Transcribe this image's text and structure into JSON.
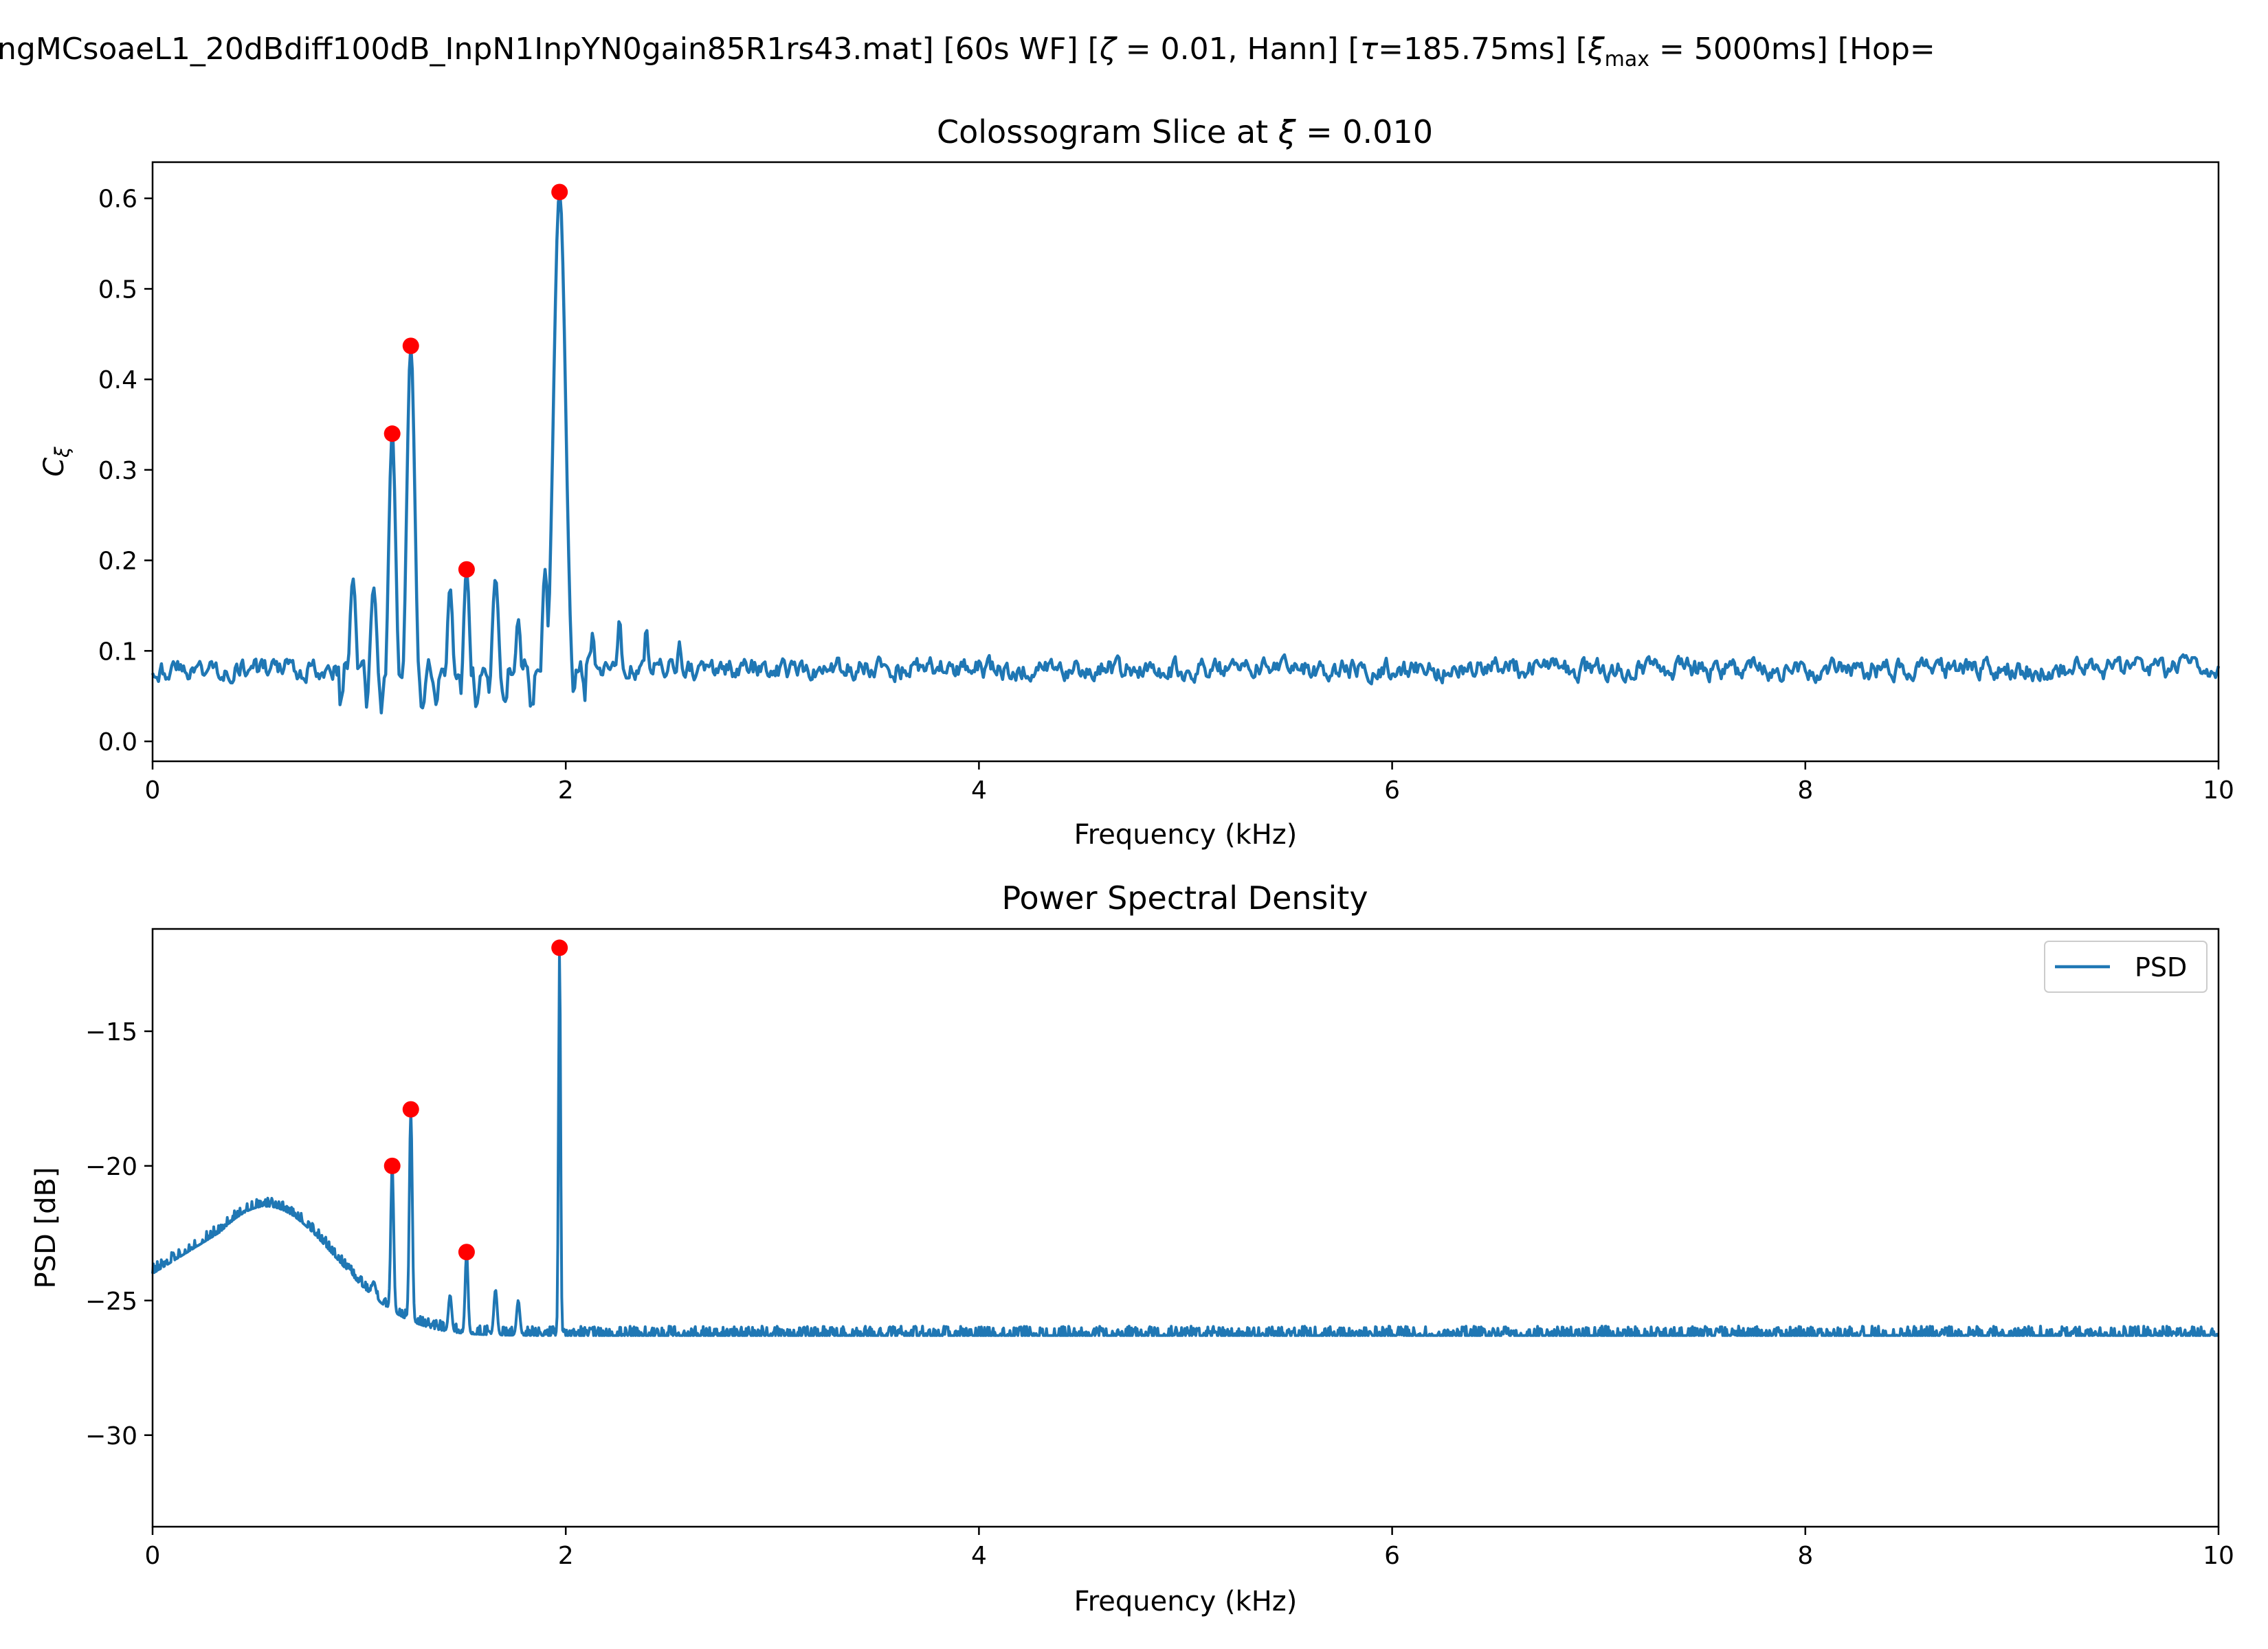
{
  "figure": {
    "suptitle_main": "ngMCsoaeL1_20dBdiff100dB_InpN1InpYN0gain85R1rs43.mat]   [60s WF]   [",
    "zeta_sym": "ζ",
    "zeta_val": " = 0.01, Hann]   [",
    "tau_sym": "τ",
    "tau_val": "=185.75ms]   [",
    "xi_sym": "ξ",
    "xi_sub": "max",
    "xi_val": " = 5000ms]   [Hop="
  },
  "chart_data": [
    {
      "type": "line",
      "title_prefix": "Colossogram Slice at ",
      "title_sym": "ξ",
      "title_value": " = 0.010",
      "xlabel": "Frequency (kHz)",
      "ylabel_main": "C",
      "ylabel_sub": "ξ",
      "xlim": [
        0,
        10
      ],
      "ylim": [
        -0.022,
        0.64
      ],
      "xticks": [
        0,
        2,
        4,
        6,
        8,
        10
      ],
      "xtick_labels": [
        "0",
        "2",
        "4",
        "6",
        "8",
        "10"
      ],
      "yticks": [
        0.0,
        0.1,
        0.2,
        0.3,
        0.4,
        0.5,
        0.6
      ],
      "ytick_labels": [
        "0.0",
        "0.1",
        "0.2",
        "0.3",
        "0.4",
        "0.5",
        "0.6"
      ],
      "grid": false,
      "line_color": "#1f77b4",
      "peak_color": "#ff0000",
      "baseline": 0.08,
      "noise_amplitude": 0.013,
      "features": [
        {
          "f": 0.97,
          "v": 0.18,
          "w": 0.018
        },
        {
          "f": 1.07,
          "v": 0.17,
          "w": 0.018
        },
        {
          "f": 1.16,
          "v": 0.34,
          "w": 0.018
        },
        {
          "f": 1.25,
          "v": 0.437,
          "w": 0.02
        },
        {
          "f": 1.44,
          "v": 0.17,
          "w": 0.016
        },
        {
          "f": 1.52,
          "v": 0.19,
          "w": 0.016
        },
        {
          "f": 1.66,
          "v": 0.18,
          "w": 0.018
        },
        {
          "f": 1.77,
          "v": 0.135,
          "w": 0.016
        },
        {
          "f": 1.9,
          "v": 0.19,
          "w": 0.016
        },
        {
          "f": 1.97,
          "v": 0.607,
          "w": 0.03
        },
        {
          "f": 2.13,
          "v": 0.12,
          "w": 0.014
        },
        {
          "f": 2.26,
          "v": 0.135,
          "w": 0.014
        },
        {
          "f": 2.39,
          "v": 0.125,
          "w": 0.014
        },
        {
          "f": 2.55,
          "v": 0.11,
          "w": 0.014
        }
      ],
      "peaks": [
        {
          "f": 1.16,
          "v": 0.34
        },
        {
          "f": 1.25,
          "v": 0.437
        },
        {
          "f": 1.52,
          "v": 0.19
        },
        {
          "f": 1.97,
          "v": 0.607
        }
      ]
    },
    {
      "type": "line",
      "title": "Power Spectral Density",
      "xlabel": "Frequency (kHz)",
      "ylabel": "PSD [dB]",
      "xlim": [
        0,
        10
      ],
      "ylim": [
        -33.4,
        -11.2
      ],
      "xticks": [
        0,
        2,
        4,
        6,
        8,
        10
      ],
      "xtick_labels": [
        "0",
        "2",
        "4",
        "6",
        "8",
        "10"
      ],
      "yticks": [
        -30,
        -25,
        -20,
        -15
      ],
      "ytick_labels": [
        "−30",
        "−25",
        "−20",
        "−15"
      ],
      "grid": false,
      "legend": {
        "position": "top-right",
        "label": "PSD"
      },
      "line_color": "#1f77b4",
      "peak_color": "#ff0000",
      "series": [
        {
          "name": "PSD"
        }
      ],
      "floor_db": -26.3,
      "noise_amplitude": 0.25,
      "hump": {
        "f": 0.55,
        "v": -21.5,
        "w": 0.6
      },
      "features": [
        {
          "f": 0.95,
          "v": -23.8,
          "w": 0.01
        },
        {
          "f": 1.07,
          "v": -24.3,
          "w": 0.01
        },
        {
          "f": 1.16,
          "v": -20.0,
          "w": 0.007
        },
        {
          "f": 1.25,
          "v": -17.9,
          "w": 0.007
        },
        {
          "f": 1.44,
          "v": -24.8,
          "w": 0.008
        },
        {
          "f": 1.52,
          "v": -23.2,
          "w": 0.007
        },
        {
          "f": 1.66,
          "v": -24.6,
          "w": 0.008
        },
        {
          "f": 1.77,
          "v": -25.0,
          "w": 0.008
        },
        {
          "f": 1.97,
          "v": -11.9,
          "w": 0.005
        }
      ],
      "peaks": [
        {
          "f": 1.16,
          "v": -20.0
        },
        {
          "f": 1.25,
          "v": -17.9
        },
        {
          "f": 1.52,
          "v": -23.2
        },
        {
          "f": 1.97,
          "v": -11.9
        }
      ]
    }
  ]
}
